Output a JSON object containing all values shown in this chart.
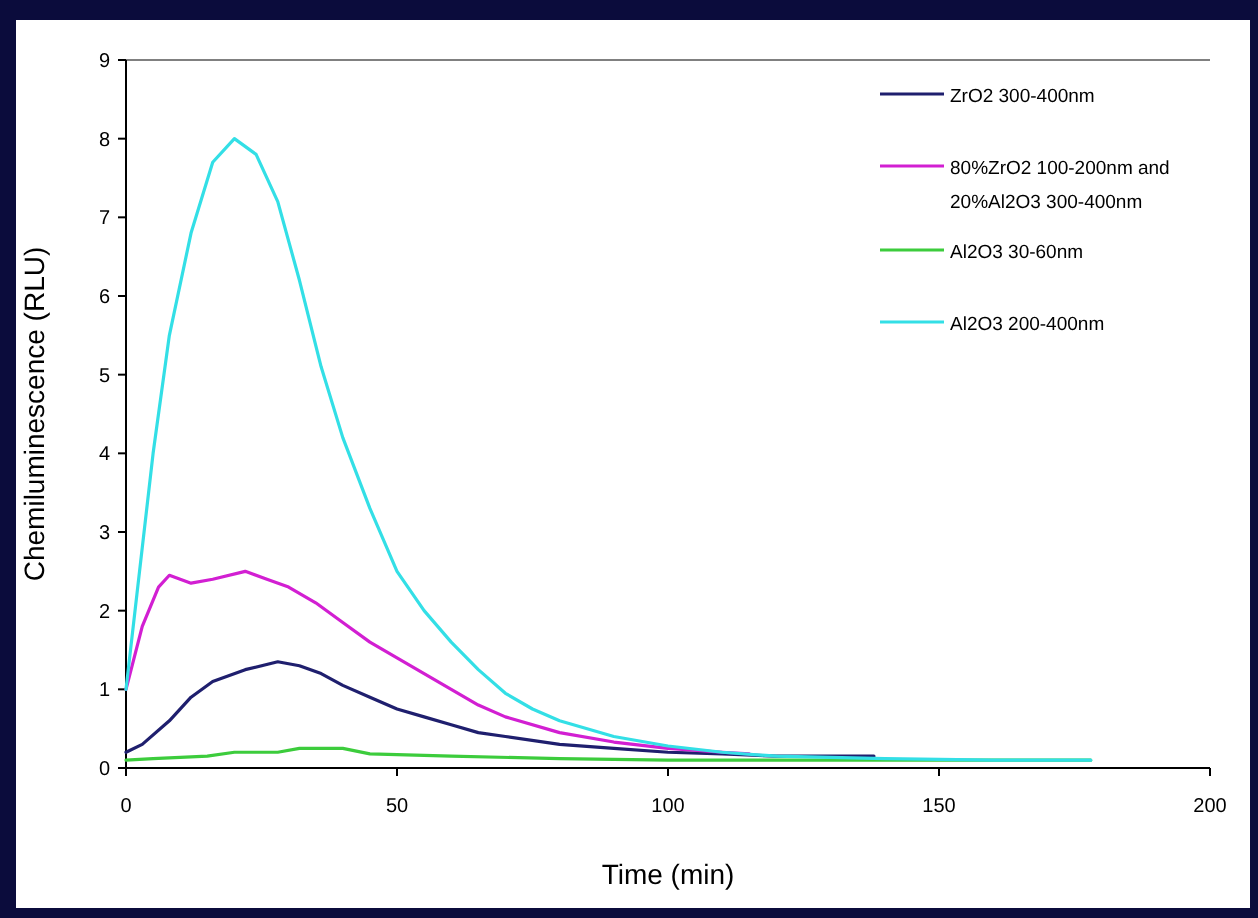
{
  "chart_data": {
    "type": "line",
    "xlabel": "Time (min)",
    "ylabel": "Chemiluminescence (RLU)",
    "xlim": [
      0,
      200
    ],
    "xticks": [
      0,
      50,
      100,
      150,
      200
    ],
    "ylim": [
      0,
      9
    ],
    "yticks": [
      0,
      1,
      2,
      3,
      4,
      5,
      6,
      7,
      8,
      9
    ],
    "grid": false,
    "legend": "top right",
    "line_style": "solid",
    "series": [
      {
        "name": "ZrO2 300-400nm",
        "color": "#1f1f6e",
        "x": [
          0,
          3,
          8,
          12,
          16,
          22,
          28,
          32,
          36,
          40,
          45,
          50,
          55,
          60,
          65,
          70,
          80,
          90,
          100,
          110,
          120,
          138
        ],
        "values": [
          0.2,
          0.3,
          0.6,
          0.9,
          1.1,
          1.25,
          1.35,
          1.3,
          1.2,
          1.05,
          0.9,
          0.75,
          0.65,
          0.55,
          0.45,
          0.4,
          0.3,
          0.25,
          0.2,
          0.18,
          0.15,
          0.15
        ]
      },
      {
        "name": "80%ZrO2 100-200nm and 20%Al2O3 300-400nm",
        "color": "#d21fd2",
        "x": [
          0,
          3,
          6,
          8,
          12,
          16,
          22,
          26,
          30,
          35,
          40,
          45,
          50,
          55,
          60,
          65,
          70,
          80,
          90,
          100,
          110,
          115
        ],
        "values": [
          1,
          1.8,
          2.3,
          2.45,
          2.35,
          2.4,
          2.5,
          2.4,
          2.3,
          2.1,
          1.85,
          1.6,
          1.4,
          1.2,
          1,
          0.8,
          0.65,
          0.45,
          0.33,
          0.25,
          0.2,
          0.18
        ]
      },
      {
        "name": "Al2O3 30-60nm",
        "color": "#3ccc3c",
        "x": [
          0,
          5,
          15,
          20,
          28,
          32,
          40,
          45,
          60,
          80,
          100,
          120,
          150,
          178
        ],
        "values": [
          0.1,
          0.12,
          0.15,
          0.2,
          0.2,
          0.25,
          0.25,
          0.18,
          0.15,
          0.12,
          0.1,
          0.1,
          0.1,
          0.1
        ]
      },
      {
        "name": "Al2O3 200-400nm",
        "color": "#33dfe6",
        "x": [
          0,
          2,
          5,
          8,
          12,
          16,
          20,
          24,
          28,
          32,
          36,
          40,
          45,
          50,
          55,
          60,
          65,
          70,
          75,
          80,
          90,
          100,
          110,
          120,
          140,
          160,
          178
        ],
        "values": [
          1,
          2.2,
          4,
          5.5,
          6.8,
          7.7,
          8,
          7.8,
          7.2,
          6.2,
          5.1,
          4.2,
          3.3,
          2.5,
          2,
          1.6,
          1.25,
          0.95,
          0.75,
          0.6,
          0.4,
          0.28,
          0.2,
          0.15,
          0.12,
          0.1,
          0.1
        ]
      }
    ]
  }
}
